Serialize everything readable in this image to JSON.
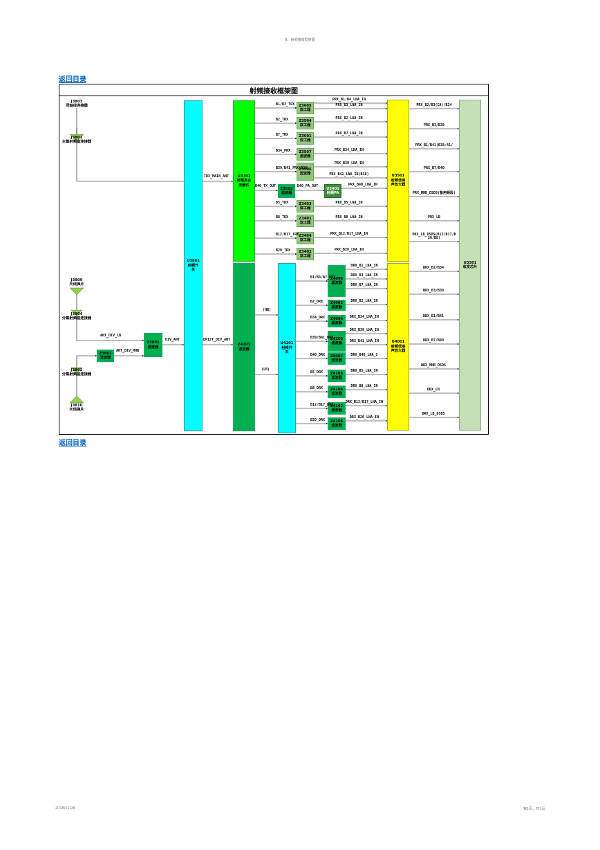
{
  "page": {
    "header_text": "9、射频接收框架图",
    "back_link_top": "返回目录",
    "back_link_bottom": "返回目录",
    "footer_date": "2018/11/26",
    "footer_page": "第1页，共1页"
  },
  "diagram": {
    "title": "射频接收框架图",
    "connectors": {
      "j3803": "J3803\n同轴线连接器",
      "j3801": "J3801\n主集射频座连接器",
      "j3809": "J3809\n天线弹片",
      "j3804": "J3804\n分集射频座连接器",
      "j3802": "J3802\n分集射频座连接器",
      "j3810": "J3810\n天线弹片"
    },
    "blocks": {
      "u3801": "U3801\n射频开\n关",
      "u3701": "U3701\n射频多业\n务器件",
      "z4101": "Z4101\n滤波器",
      "u4101": "U4101\n射频开\n关",
      "u3501": "U3501\n射频低噪\n声放大器",
      "u4001": "U4001\n射频低噪\n声放大器",
      "u3301": "U3301\n收发芯片",
      "z3801": "Z3801\n滤波器",
      "z3802": "Z3802\n滤波器",
      "z3502": "Z3502\n滤波器",
      "u3401": "U3401\n射频PA"
    },
    "prx_filters": [
      {
        "id": "Z3605\n双工器",
        "in": "B1/B3_TRX"
      },
      {
        "id": "Z3504\n双工器",
        "in": "B2_TRX"
      },
      {
        "id": "Z3601\n双工器",
        "in": "B7_TRX"
      },
      {
        "id": "Z3507\n滤波器",
        "in": "B34_PRX"
      },
      {
        "id": "Z3506\n滤波器",
        "in": "B39/B41_PRX(B38)"
      },
      {
        "id": "Z3403\n双工器",
        "in": "B5_TRX"
      },
      {
        "id": "Z3401\n双工器",
        "in": "B8_TRX"
      },
      {
        "id": "Z3404\n双工器",
        "in": "B12/B17_TRX"
      },
      {
        "id": "Z3402\n双工器",
        "in": "B20_TRX"
      }
    ],
    "prx_lna_labels": [
      "PRX_B1/B4_LNA_IN",
      "PRX_B3_LNA_IN",
      "PRX_B2_LNA_IN",
      "PRX_B7_LNA_IN",
      "PRX_B34_LNA_IN",
      "PRX_B39_LNA_IN",
      "PRX_B41_LNA_IN(B38)",
      "PRX_B40_LNA_IN",
      "PRX_B5_LNA_IN",
      "PRX_B8_LNA_IN",
      "PRX_B12/B17_LNA_IN",
      "PRX_B20_LNA_IN"
    ],
    "prx_out_labels": [
      "PRX_B2/B3(CA)/B34",
      "PRX_B3/B39",
      "PRX_B1/B41(B38/41/",
      "PRX_B7/B40",
      "PRX_MHB_DSDS(备用频段)",
      "PRX_LB",
      "PRX_LB_DSDS(B12/B17/B\n20/B8)"
    ],
    "drx_filters": [
      {
        "id": "Z4006\n滤波器",
        "in": "B1/B3/B7_DRX"
      },
      {
        "id": "Z4002\n滤波器",
        "in": "B2_DRX"
      },
      {
        "id": "Z4004\n滤波器",
        "in": "B34_DRX"
      },
      {
        "id": "Z4209\n滤波器",
        "in": "B39/B41_DRX"
      },
      {
        "id": "Z4007\n滤波器",
        "in": "B40_DRX"
      },
      {
        "id": "Z4105\n滤波器",
        "in": "B5_DRX"
      },
      {
        "id": "Z4104\n滤波器",
        "in": "B8_DRX"
      },
      {
        "id": "Z4102\n滤波器",
        "in": "B12/B17_DRX"
      },
      {
        "id": "Z4106\n滤波器",
        "in": "B20_DRX"
      }
    ],
    "drx_lna_labels": [
      "DRX_B1_LNA_IN",
      "DRX_B3_LNA_IN",
      "DRX_B7_LNA_IN",
      "DRX_B2_LNA_IN",
      "DRX_B34_LNA_IN",
      "DRX_B39_LNA_IN",
      "DRX_B41_LNA_IN",
      "DRX_B40_LNA_I",
      "DRX_B5_LNA_IN",
      "DRX_B8_LNA_IN",
      "DRX_B12/B17_LNA_IN",
      "DRX_B20_LNA_IN"
    ],
    "drx_out_labels": [
      "DRX_B2/B34",
      "DRX_B3/B39",
      "DRX_B1/B41",
      "DRX_B7/B40",
      "DRX_MHB_DSDS",
      "DRX_LB",
      "DRX_LB_DSDS"
    ],
    "wire_labels": {
      "trx_main_ant": "TRX_MAIN_ANT",
      "b40_tx_out": "B40_TX_OUT",
      "b40_pa_out": "B40_PA_OUT",
      "hb": "(HB)",
      "lb": "(LB)",
      "ant_div_lb": "ANT_DIV_LB",
      "ant_div_mhb": "ANT_DIV_MHB",
      "div_ant": "DIV_ANT",
      "dpi2t_div_ant": "DPI2T_DIV_ANT"
    }
  }
}
